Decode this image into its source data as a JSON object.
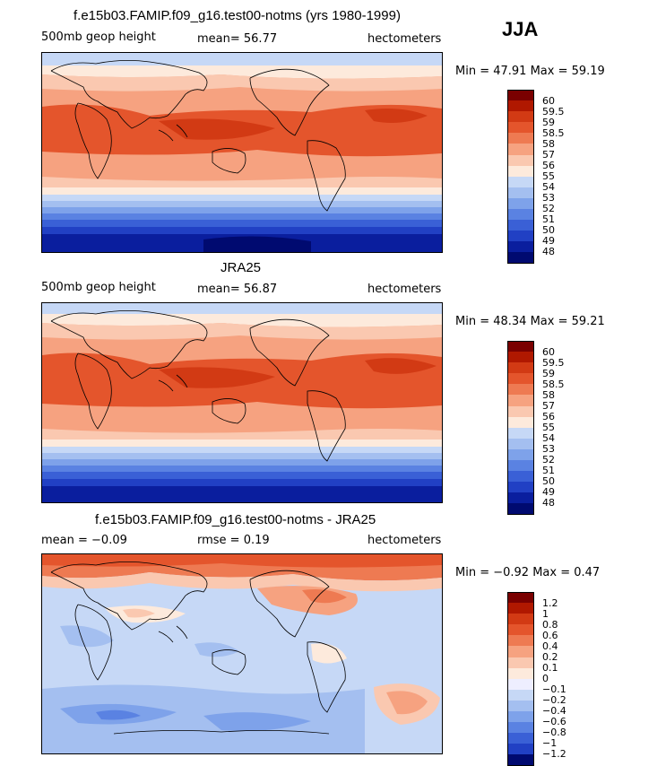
{
  "season": "JJA",
  "panels": [
    {
      "title": "f.e15b03.FAMIP.f09_g16.test00-notms (yrs 1980-1999)",
      "left_label": "500mb geop height",
      "stat": "mean=  56.77",
      "units": "hectometers",
      "range": "Min =  47.91  Max =  59.19",
      "type": "abs",
      "legend_levels": [
        "60",
        "59.5",
        "59",
        "58.5",
        "58",
        "57",
        "56",
        "55",
        "54",
        "53",
        "52",
        "51",
        "50",
        "49",
        "48"
      ]
    },
    {
      "title": "JRA25",
      "left_label": "500mb geop height",
      "stat": "mean=  56.87",
      "units": "hectometers",
      "range": "Min =  48.34  Max =  59.21",
      "type": "abs",
      "legend_levels": [
        "60",
        "59.5",
        "59",
        "58.5",
        "58",
        "57",
        "56",
        "55",
        "54",
        "53",
        "52",
        "51",
        "50",
        "49",
        "48"
      ]
    },
    {
      "title": "f.e15b03.FAMIP.f09_g16.test00-notms - JRA25",
      "left_label": "mean =  −0.09",
      "stat": "rmse =   0.19",
      "units": "hectometers",
      "range": "Min =  −0.92  Max =   0.47",
      "type": "diff",
      "legend_levels": [
        "1.2",
        "1",
        "0.8",
        "0.6",
        "0.4",
        "0.2",
        "0.1",
        "0",
        "−0.1",
        "−0.2",
        "−0.4",
        "−0.6",
        "−0.8",
        "−1",
        "−1.2"
      ]
    }
  ],
  "colors": {
    "abs_scale": [
      "#7a0000",
      "#b01800",
      "#d23a14",
      "#e4552c",
      "#ee7a52",
      "#f6a280",
      "#fac8b0",
      "#fdeadc",
      "#c6d8f6",
      "#a4bff0",
      "#7ea2ea",
      "#5a82e2",
      "#3a60d6",
      "#2140c4",
      "#0a1e9e",
      "#000a70"
    ],
    "diff_scale": [
      "#7a0000",
      "#b01800",
      "#d23a14",
      "#e4552c",
      "#ee7a52",
      "#f6a280",
      "#fac8b0",
      "#fdeadc",
      "#eeeeff",
      "#c6d8f6",
      "#a4bff0",
      "#7ea2ea",
      "#5a82e2",
      "#3a60d6",
      "#2140c4",
      "#000a70"
    ]
  }
}
